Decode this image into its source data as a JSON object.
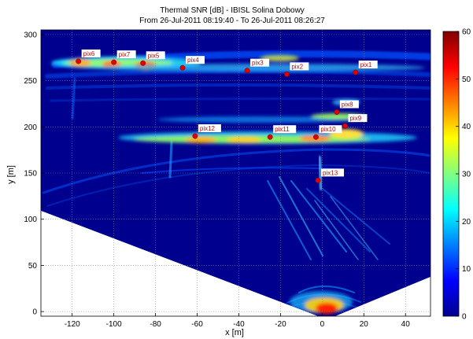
{
  "chart_data": {
    "type": "heatmap",
    "title": "Thermal SNR [dB] - IBISL Solina Dobowy",
    "subtitle": "From 26-Jul-2011 08:19:40 - To 26-Jul-2011 08:26:27",
    "xlabel": "x [m]",
    "ylabel": "y [m]",
    "xlim": [
      -135,
      52
    ],
    "ylim": [
      -5,
      305
    ],
    "x_ticks": [
      -120,
      -100,
      -80,
      -60,
      -40,
      -20,
      0,
      20,
      40
    ],
    "y_ticks": [
      0,
      50,
      100,
      150,
      200,
      250,
      300
    ],
    "colorbar": {
      "min": 0,
      "max": 60,
      "ticks": [
        0,
        10,
        20,
        30,
        40,
        50,
        60
      ],
      "colormap": "jet"
    },
    "grid": true,
    "points": [
      {
        "label": "pix1",
        "x": 16,
        "y": 259
      },
      {
        "label": "pix2",
        "x": -17,
        "y": 257
      },
      {
        "label": "pix3",
        "x": -36,
        "y": 261
      },
      {
        "label": "pix4",
        "x": -67,
        "y": 264
      },
      {
        "label": "pix5",
        "x": -86,
        "y": 269
      },
      {
        "label": "pix6",
        "x": -117,
        "y": 271
      },
      {
        "label": "pix7",
        "x": -100,
        "y": 270
      },
      {
        "label": "pix8",
        "x": 7,
        "y": 216
      },
      {
        "label": "pix9",
        "x": 11,
        "y": 201
      },
      {
        "label": "pix10",
        "x": -3,
        "y": 189
      },
      {
        "label": "pix11",
        "x": -25,
        "y": 189
      },
      {
        "label": "pix12",
        "x": -61,
        "y": 190
      },
      {
        "label": "pix13",
        "x": -2,
        "y": 142
      }
    ],
    "colors": {
      "background_low": "#00008f",
      "marker": "#e00000"
    }
  }
}
